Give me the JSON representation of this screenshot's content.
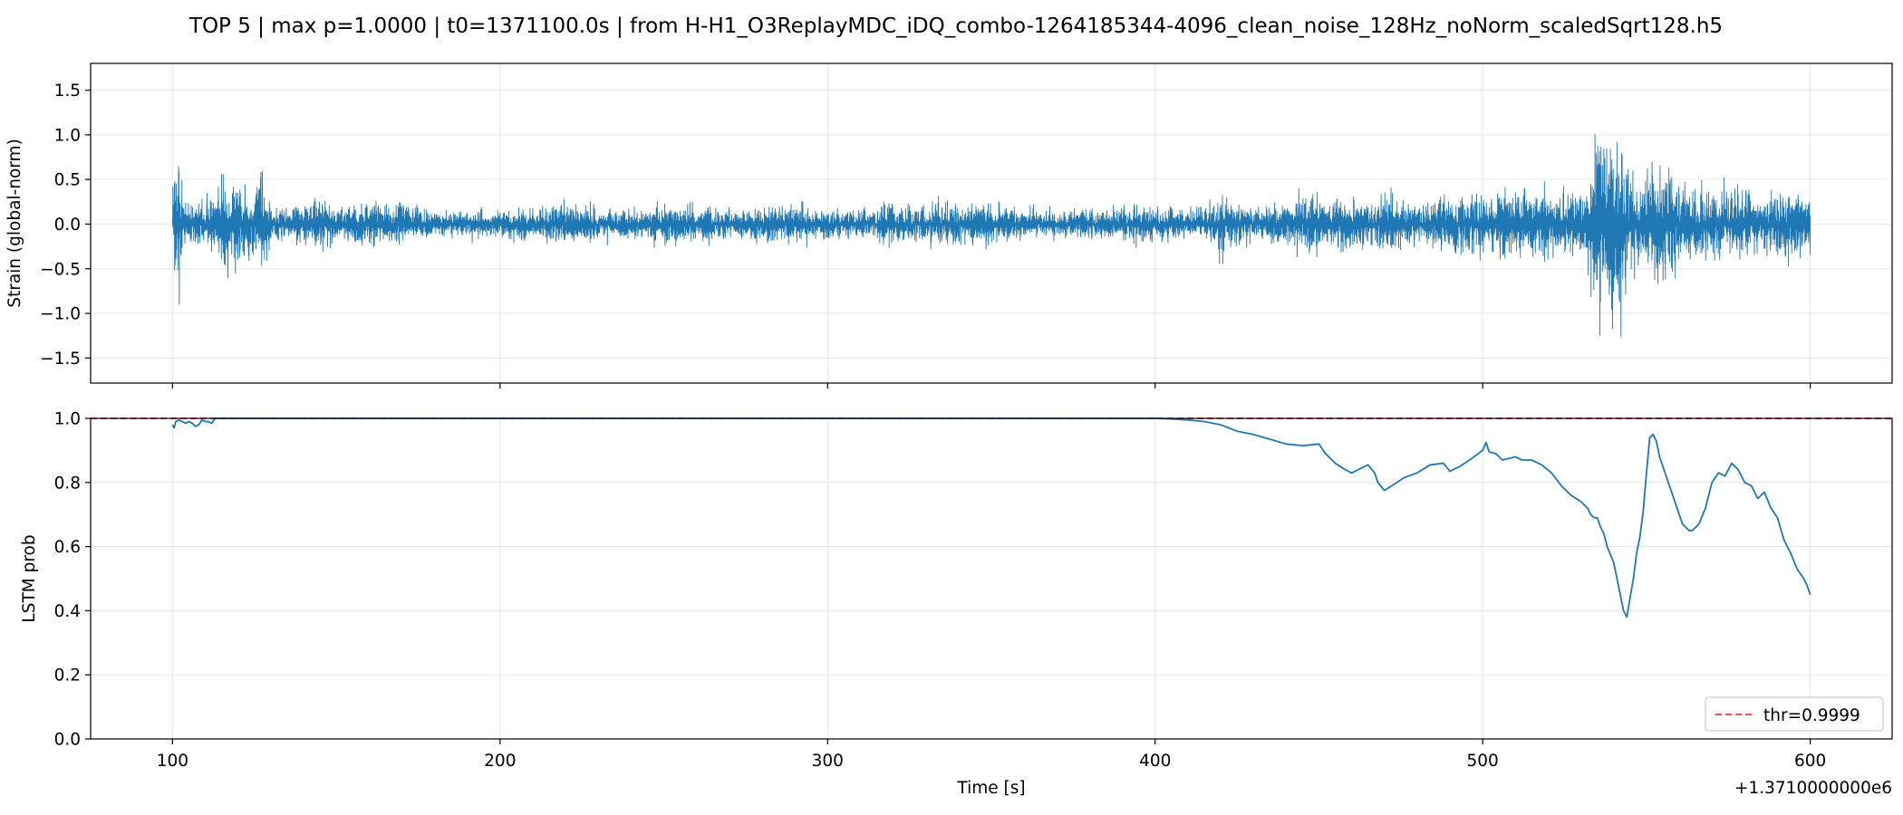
{
  "title": "TOP 5 | max p=1.0000 | t0=1371100.0s | from H-H1_O3ReplayMDC_iDQ_combo-1264185344-4096_clean_noise_128Hz_noNorm_scaledSqrt128.h5",
  "colors": {
    "line": "#1f77b4",
    "threshold": "#ff4d4d",
    "grid": "#e6e6e6",
    "axes": "#000000"
  },
  "chart_data": [
    {
      "type": "line",
      "ylabel": "Strain (global-norm)",
      "xlim": [
        75,
        625
      ],
      "ylim": [
        -1.78,
        1.8
      ],
      "x_ticks": [
        100,
        200,
        300,
        400,
        500,
        600
      ],
      "y_ticks": [
        -1.5,
        -1.0,
        -0.5,
        0.0,
        0.5,
        1.0,
        1.5
      ],
      "y_tick_labels": [
        "−1.5",
        "−1.0",
        "−0.5",
        "0.0",
        "0.5",
        "1.0",
        "1.5"
      ],
      "grid": true,
      "signal": {
        "x_range": [
          100,
          600
        ],
        "envelope": [
          [
            100,
            0.7
          ],
          [
            101,
            1.25
          ],
          [
            102,
            1.3
          ],
          [
            103,
            0.5
          ],
          [
            104,
            0.35
          ],
          [
            106,
            0.3
          ],
          [
            110,
            0.35
          ],
          [
            112,
            0.4
          ],
          [
            114,
            0.45
          ],
          [
            115,
            0.7
          ],
          [
            117,
            0.6
          ],
          [
            119,
            0.55
          ],
          [
            120,
            0.8
          ],
          [
            121,
            0.5
          ],
          [
            124,
            0.5
          ],
          [
            126,
            0.6
          ],
          [
            127,
            1.05
          ],
          [
            128,
            0.55
          ],
          [
            130,
            0.3
          ],
          [
            135,
            0.25
          ],
          [
            140,
            0.3
          ],
          [
            145,
            0.42
          ],
          [
            150,
            0.25
          ],
          [
            160,
            0.35
          ],
          [
            170,
            0.28
          ],
          [
            180,
            0.22
          ],
          [
            190,
            0.2
          ],
          [
            200,
            0.2
          ],
          [
            210,
            0.25
          ],
          [
            220,
            0.32
          ],
          [
            230,
            0.25
          ],
          [
            240,
            0.22
          ],
          [
            250,
            0.28
          ],
          [
            260,
            0.3
          ],
          [
            270,
            0.22
          ],
          [
            280,
            0.3
          ],
          [
            290,
            0.28
          ],
          [
            300,
            0.25
          ],
          [
            310,
            0.22
          ],
          [
            320,
            0.3
          ],
          [
            330,
            0.28
          ],
          [
            340,
            0.32
          ],
          [
            350,
            0.3
          ],
          [
            360,
            0.25
          ],
          [
            370,
            0.2
          ],
          [
            380,
            0.22
          ],
          [
            390,
            0.28
          ],
          [
            400,
            0.25
          ],
          [
            410,
            0.22
          ],
          [
            415,
            0.25
          ],
          [
            420,
            0.48
          ],
          [
            425,
            0.3
          ],
          [
            430,
            0.25
          ],
          [
            440,
            0.3
          ],
          [
            447,
            0.5
          ],
          [
            452,
            0.35
          ],
          [
            460,
            0.4
          ],
          [
            465,
            0.35
          ],
          [
            470,
            0.45
          ],
          [
            475,
            0.35
          ],
          [
            480,
            0.3
          ],
          [
            490,
            0.45
          ],
          [
            495,
            0.5
          ],
          [
            500,
            0.55
          ],
          [
            502,
            0.4
          ],
          [
            510,
            0.45
          ],
          [
            515,
            0.55
          ],
          [
            520,
            0.5
          ],
          [
            525,
            0.45
          ],
          [
            530,
            0.5
          ],
          [
            533,
            0.9
          ],
          [
            536,
            1.4
          ],
          [
            538,
            1.6
          ],
          [
            540,
            1.5
          ],
          [
            542,
            1.2
          ],
          [
            545,
            0.8
          ],
          [
            548,
            0.75
          ],
          [
            552,
            1.0
          ],
          [
            555,
            0.95
          ],
          [
            558,
            0.75
          ],
          [
            562,
            0.55
          ],
          [
            568,
            0.55
          ],
          [
            575,
            0.6
          ],
          [
            580,
            0.5
          ],
          [
            585,
            0.45
          ],
          [
            590,
            0.5
          ],
          [
            595,
            0.55
          ],
          [
            600,
            0.45
          ]
        ]
      }
    },
    {
      "type": "line",
      "xlabel": "Time [s]",
      "ylabel": "LSTM prob",
      "x_offset_text": "+1.3710000000e6",
      "xlim": [
        75,
        625
      ],
      "ylim": [
        0.0,
        1.0
      ],
      "x_ticks": [
        100,
        200,
        300,
        400,
        500,
        600
      ],
      "y_ticks": [
        0.0,
        0.2,
        0.4,
        0.6,
        0.8,
        1.0
      ],
      "y_tick_labels": [
        "0.0",
        "0.2",
        "0.4",
        "0.6",
        "0.8",
        "1.0"
      ],
      "grid": true,
      "legend": {
        "label": "thr=0.9999",
        "position": "lower-right"
      },
      "threshold": 0.9999,
      "series": [
        {
          "x": [
            100,
            100.5,
            101,
            102,
            103,
            104,
            105,
            106,
            107,
            108,
            109,
            110,
            111,
            112,
            113,
            130,
            200,
            300,
            400,
            405,
            410,
            415,
            420,
            425,
            430,
            435,
            440,
            445,
            450,
            452,
            455,
            458,
            460,
            462,
            465,
            467,
            468,
            470,
            473,
            476,
            480,
            484,
            488,
            490,
            493,
            496,
            498,
            500,
            501,
            502,
            504,
            506,
            508,
            510,
            512,
            515,
            518,
            521,
            524,
            527,
            530,
            532,
            533,
            534,
            535,
            536,
            537,
            538,
            540,
            541,
            542,
            543,
            544,
            545,
            546,
            547,
            548,
            549,
            550,
            551,
            552,
            553,
            554,
            556,
            558,
            560,
            561,
            562,
            563,
            564,
            566,
            568,
            570,
            572,
            574,
            576,
            578,
            580,
            582,
            584,
            586,
            588,
            590,
            592,
            594,
            596,
            598,
            599,
            600
          ],
          "y": [
            0.98,
            0.97,
            0.99,
            0.995,
            0.99,
            0.985,
            0.99,
            0.985,
            0.975,
            0.98,
            0.995,
            0.99,
            0.99,
            0.985,
            1.0,
            1.0,
            1.0,
            1.0,
            1.0,
            0.998,
            0.995,
            0.99,
            0.98,
            0.96,
            0.95,
            0.935,
            0.92,
            0.915,
            0.92,
            0.89,
            0.86,
            0.84,
            0.83,
            0.84,
            0.855,
            0.83,
            0.8,
            0.775,
            0.795,
            0.815,
            0.83,
            0.855,
            0.86,
            0.835,
            0.85,
            0.87,
            0.885,
            0.9,
            0.925,
            0.895,
            0.89,
            0.87,
            0.875,
            0.88,
            0.87,
            0.87,
            0.855,
            0.83,
            0.79,
            0.76,
            0.74,
            0.72,
            0.7,
            0.69,
            0.69,
            0.66,
            0.64,
            0.6,
            0.55,
            0.5,
            0.45,
            0.4,
            0.38,
            0.44,
            0.5,
            0.58,
            0.63,
            0.71,
            0.83,
            0.94,
            0.95,
            0.93,
            0.88,
            0.82,
            0.76,
            0.7,
            0.67,
            0.66,
            0.65,
            0.65,
            0.67,
            0.72,
            0.8,
            0.83,
            0.82,
            0.86,
            0.84,
            0.8,
            0.79,
            0.75,
            0.77,
            0.72,
            0.69,
            0.62,
            0.58,
            0.53,
            0.5,
            0.48,
            0.45
          ]
        }
      ]
    }
  ]
}
